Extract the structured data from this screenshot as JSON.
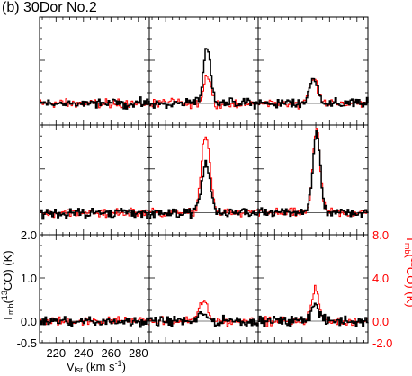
{
  "chart_data": {
    "type": "line",
    "title": "(b) 30Dor No.2",
    "layout": "3x3 grid of spectra",
    "xlabel": "V",
    "xlabel_sub": "lsr",
    "xlabel_unit": " (km s",
    "xlabel_sup": "-1",
    "xlabel_close": ")",
    "ylabel_left": "T",
    "ylabel_left_sub": "mb",
    "ylabel_left_mid": "(",
    "ylabel_left_sup": "13",
    "ylabel_left_end": "CO) (K)",
    "ylabel_right": "T",
    "ylabel_right_sub": "mb",
    "ylabel_right_mid": "(",
    "ylabel_right_sup": "12",
    "ylabel_right_end": "CO) (K)",
    "xlim": [
      208,
      288
    ],
    "ylim_13co": [
      -0.5,
      2.0
    ],
    "ylim_12co": [
      -2.0,
      8.0
    ],
    "x_tick_labels": [
      "220",
      "240",
      "260",
      "280"
    ],
    "x_tick_values": [
      220,
      240,
      260,
      280
    ],
    "y_left_ticks": [
      "2.0",
      "1.0",
      "0.0",
      "-0.5"
    ],
    "y_left_values": [
      2.0,
      1.0,
      0.0,
      -0.5
    ],
    "y_right_ticks": [
      "8.0",
      "4.0",
      "0.0",
      "-2.0"
    ],
    "y_right_values": [
      8.0,
      4.0,
      0.0,
      -2.0
    ],
    "series_colors": {
      "13co": "#000000",
      "12co": "#ff0000"
    },
    "panels": [
      {
        "row": 0,
        "col": 0,
        "peak13": 0.0,
        "peak12": 0.0,
        "center": 248,
        "width": 3
      },
      {
        "row": 0,
        "col": 1,
        "peak13": 1.35,
        "peak12": 0.65,
        "center": 250,
        "width": 2.6
      },
      {
        "row": 0,
        "col": 2,
        "peak13": 0.55,
        "peak12": 0.55,
        "center": 248,
        "width": 3.2
      },
      {
        "row": 1,
        "col": 0,
        "peak13": 0.0,
        "peak12": 0.0,
        "center": 248,
        "width": 3
      },
      {
        "row": 1,
        "col": 1,
        "peak13": 1.1,
        "peak12": 1.75,
        "center": 249,
        "width": 3.2
      },
      {
        "row": 1,
        "col": 2,
        "peak13": 1.85,
        "peak12": 1.95,
        "center": 250,
        "width": 2.6
      },
      {
        "row": 2,
        "col": 0,
        "peak13": 0.0,
        "peak12": 0.0,
        "center": 248,
        "width": 3
      },
      {
        "row": 2,
        "col": 1,
        "peak13": 0.2,
        "peak12": 0.45,
        "center": 247,
        "width": 3
      },
      {
        "row": 2,
        "col": 2,
        "peak13": 0.38,
        "peak12": 0.75,
        "center": 249,
        "width": 2.8
      }
    ]
  }
}
